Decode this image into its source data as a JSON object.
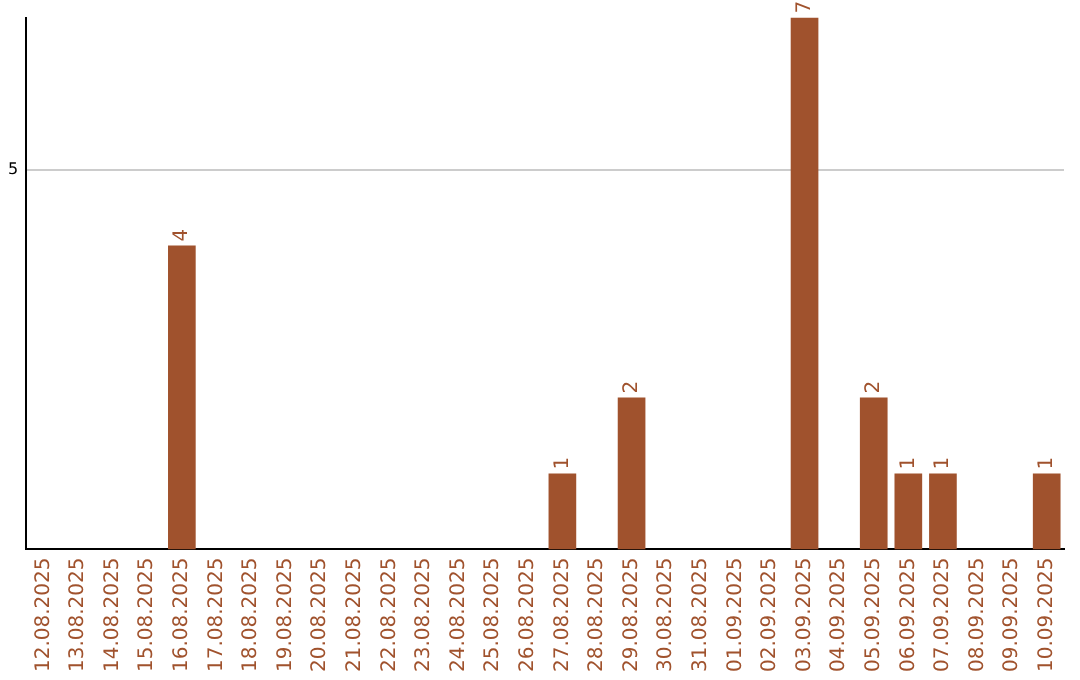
{
  "chart_data": {
    "type": "bar",
    "categories": [
      "12.08.2025",
      "13.08.2025",
      "14.08.2025",
      "15.08.2025",
      "16.08.2025",
      "17.08.2025",
      "18.08.2025",
      "19.08.2025",
      "20.08.2025",
      "21.08.2025",
      "22.08.2025",
      "23.08.2025",
      "24.08.2025",
      "25.08.2025",
      "26.08.2025",
      "27.08.2025",
      "28.08.2025",
      "29.08.2025",
      "30.08.2025",
      "31.08.2025",
      "01.09.2025",
      "02.09.2025",
      "03.09.2025",
      "04.09.2025",
      "05.09.2025",
      "06.09.2025",
      "07.09.2025",
      "08.09.2025",
      "09.09.2025",
      "10.09.2025"
    ],
    "values": [
      0,
      0,
      0,
      0,
      4,
      0,
      0,
      0,
      0,
      0,
      0,
      0,
      0,
      0,
      0,
      1,
      0,
      2,
      0,
      0,
      0,
      0,
      7,
      0,
      2,
      1,
      1,
      0,
      0,
      1
    ],
    "value_labels": [
      null,
      null,
      null,
      null,
      "4",
      null,
      null,
      null,
      null,
      null,
      null,
      null,
      null,
      null,
      null,
      "1",
      null,
      "2",
      null,
      null,
      null,
      null,
      "7",
      null,
      "2",
      "1",
      "1",
      null,
      null,
      "1"
    ],
    "color": "#a0522d",
    "ylim": [
      0,
      7
    ],
    "yticks": [
      5
    ],
    "grid": "y"
  }
}
